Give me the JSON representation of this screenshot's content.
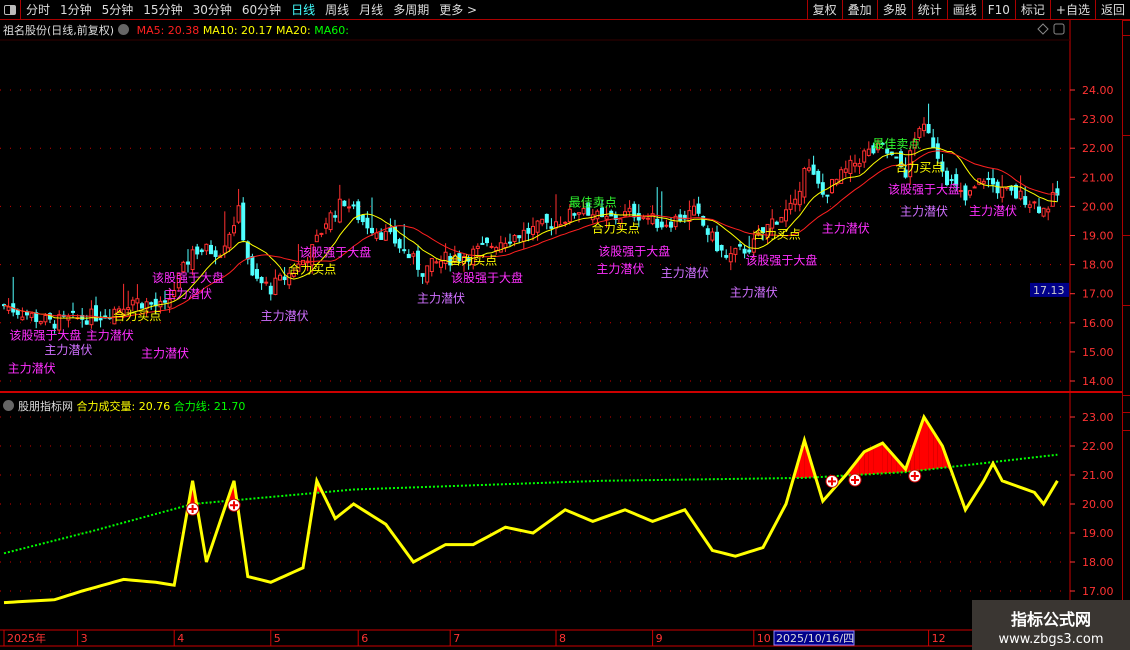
{
  "toolbar": {
    "periods": [
      "分时",
      "1分钟",
      "5分钟",
      "15分钟",
      "30分钟",
      "60分钟",
      "日线",
      "周线",
      "月线",
      "多周期",
      "更多 >"
    ],
    "active": "日线",
    "buttons": [
      "复权",
      "叠加",
      "多股",
      "统计",
      "画线",
      "F10",
      "标记",
      "+自选",
      "返回"
    ]
  },
  "main_panel": {
    "title": "祖名股份(日线,前复权)",
    "ma5": "MA5: 20.38",
    "ma10": "MA10: 20.17",
    "ma20": "MA20:",
    "ma60": "MA60:",
    "current_price_tag": "17.13",
    "colors": {
      "ma5": "#ff2020",
      "ma10": "#ffff00",
      "ma20": "#ffff00",
      "ma60": "#00ff00",
      "up": "#ff3030",
      "down": "#50ffff",
      "axis": "#ff3030"
    }
  },
  "sub_panel": {
    "source": "股朋指标网",
    "vol_label": "合力成交量: 20.76",
    "line_label": "合力线: 21.70"
  },
  "x_axis": {
    "labels": [
      {
        "t": "2025年",
        "d": 0
      },
      {
        "t": "3",
        "d": 16
      },
      {
        "t": "4",
        "d": 37
      },
      {
        "t": "5",
        "d": 58
      },
      {
        "t": "6",
        "d": 77
      },
      {
        "t": "7",
        "d": 97
      },
      {
        "t": "8",
        "d": 120
      },
      {
        "t": "9",
        "d": 141
      },
      {
        "t": "10",
        "d": 163
      }
    ],
    "cursor_label": "2025/10/16/四",
    "extra": [
      {
        "t": "12",
        "d": 201
      }
    ]
  },
  "watermark": {
    "title": "指标公式网",
    "url": "www.zbgs3.com"
  },
  "chart_data": [
    {
      "type": "candlestick",
      "ylim": [
        13.6,
        25
      ],
      "yticks": [
        14,
        15,
        16,
        17,
        18,
        19,
        20,
        21,
        22,
        23,
        24
      ],
      "close_path": [
        [
          0,
          16.6
        ],
        [
          10,
          16.0
        ],
        [
          22,
          16.3
        ],
        [
          28,
          16.8
        ],
        [
          35,
          16.5
        ],
        [
          41,
          18.5
        ],
        [
          47,
          18.5
        ],
        [
          51,
          19.8
        ],
        [
          54,
          17.5
        ],
        [
          58,
          17.2
        ],
        [
          63,
          17.8
        ],
        [
          67,
          18.5
        ],
        [
          70,
          19.5
        ],
        [
          74,
          20.2
        ],
        [
          78,
          19.5
        ],
        [
          85,
          18.8
        ],
        [
          91,
          17.8
        ],
        [
          96,
          18.2
        ],
        [
          102,
          18.4
        ],
        [
          109,
          18.9
        ],
        [
          115,
          19.2
        ],
        [
          122,
          19.6
        ],
        [
          126,
          20.0
        ],
        [
          130,
          19.5
        ],
        [
          137,
          19.8
        ],
        [
          143,
          19.4
        ],
        [
          150,
          19.8
        ],
        [
          157,
          18.2
        ],
        [
          163,
          18.7
        ],
        [
          167,
          19.5
        ],
        [
          172,
          20.0
        ],
        [
          174,
          21.5
        ],
        [
          178,
          20.4
        ],
        [
          183,
          21.2
        ],
        [
          187,
          21.8
        ],
        [
          191,
          22.0
        ],
        [
          196,
          21.2
        ],
        [
          199,
          22.8
        ],
        [
          202,
          22.2
        ],
        [
          205,
          21.0
        ],
        [
          209,
          20.2
        ],
        [
          213,
          21.0
        ],
        [
          217,
          20.5
        ],
        [
          222,
          20.3
        ],
        [
          226,
          19.9
        ],
        [
          229,
          20.4
        ]
      ],
      "annotations": [
        {
          "text": "主力潜伏",
          "d": 6,
          "p": 14.3,
          "color": "#ff30ff"
        },
        {
          "text": "主力潜伏",
          "d": 14,
          "p": 14.45,
          "color": "#d070ff"
        },
        {
          "text": "该股强于大盘",
          "d": 9,
          "p": 14.95,
          "color": "#ff30ff"
        },
        {
          "text": "主力潜伏",
          "d": 23,
          "p": 14.95,
          "color": "#ff30ff"
        },
        {
          "text": "主力潜伏",
          "d": 35,
          "p": 14.8,
          "color": "#ff30ff"
        },
        {
          "text": "合力买点",
          "d": 29,
          "p": 16.1,
          "color": "#ffff00"
        },
        {
          "text": "该股强于大盘",
          "d": 40,
          "p": 17.4,
          "color": "#ff30ff"
        },
        {
          "text": "主力潜伏",
          "d": 40,
          "p": 16.85,
          "color": "#ff30ff"
        },
        {
          "text": "主力潜伏",
          "d": 61,
          "p": 16.1,
          "color": "#d070ff"
        },
        {
          "text": "合力买点",
          "d": 67,
          "p": 17.7,
          "color": "#ffff00"
        },
        {
          "text": "该股强于大盘",
          "d": 72,
          "p": 17.8,
          "color": "#ff30ff"
        },
        {
          "text": "主力潜伏",
          "d": 95,
          "p": 16.7,
          "color": "#d070ff"
        },
        {
          "text": "合力买点",
          "d": 102,
          "p": 18.0,
          "color": "#ffff00"
        },
        {
          "text": "该股强于大盘",
          "d": 105,
          "p": 17.4,
          "color": "#ff30ff"
        },
        {
          "text": "最佳卖点",
          "d": 128,
          "p": 20.0,
          "color": "#30ff30"
        },
        {
          "text": "合力买点",
          "d": 133,
          "p": 19.1,
          "color": "#ffff00"
        },
        {
          "text": "该股强于大盘",
          "d": 137,
          "p": 18.8,
          "color": "#ff30ff"
        },
        {
          "text": "主力潜伏",
          "d": 134,
          "p": 18.2,
          "color": "#ff30ff"
        },
        {
          "text": "主力潜伏",
          "d": 148,
          "p": 18.05,
          "color": "#d070ff"
        },
        {
          "text": "合力买点",
          "d": 168,
          "p": 18.9,
          "color": "#ffff00"
        },
        {
          "text": "该股强于大盘",
          "d": 169,
          "p": 18.0,
          "color": "#ff30ff"
        },
        {
          "text": "主力潜伏",
          "d": 163,
          "p": 16.9,
          "color": "#d070ff"
        },
        {
          "text": "主力潜伏",
          "d": 183,
          "p": 19.1,
          "color": "#ff30ff"
        },
        {
          "text": "最佳卖点",
          "d": 194,
          "p": 22.0,
          "color": "#30ff30"
        },
        {
          "text": "合力买点",
          "d": 199,
          "p": 21.2,
          "color": "#ffff00"
        },
        {
          "text": "该股强于大盘",
          "d": 200,
          "p": 21.4,
          "color": "#ff30ff"
        },
        {
          "text": "主力潜伏",
          "d": 200,
          "p": 20.65,
          "color": "#d070ff"
        },
        {
          "text": "主力潜伏",
          "d": 215,
          "p": 19.7,
          "color": "#ff30ff"
        }
      ]
    },
    {
      "type": "line",
      "ylim": [
        16.5,
        23.5
      ],
      "yticks": [
        17,
        18,
        19,
        20,
        21,
        22,
        23
      ],
      "series": [
        {
          "name": "合力成交量",
          "color": "#ffff00",
          "values": [
            [
              0,
              16.6
            ],
            [
              11,
              16.7
            ],
            [
              17,
              17.0
            ],
            [
              26,
              17.4
            ],
            [
              33,
              17.3
            ],
            [
              37,
              17.2
            ],
            [
              41,
              20.8
            ],
            [
              44,
              18.0
            ],
            [
              50,
              20.8
            ],
            [
              53,
              17.5
            ],
            [
              58,
              17.3
            ],
            [
              65,
              17.8
            ],
            [
              68,
              20.8
            ],
            [
              72,
              19.5
            ],
            [
              76,
              20.0
            ],
            [
              83,
              19.3
            ],
            [
              89,
              18.0
            ],
            [
              96,
              18.6
            ],
            [
              102,
              18.6
            ],
            [
              109,
              19.2
            ],
            [
              115,
              19.0
            ],
            [
              122,
              19.8
            ],
            [
              128,
              19.4
            ],
            [
              135,
              19.8
            ],
            [
              141,
              19.4
            ],
            [
              148,
              19.8
            ],
            [
              154,
              18.4
            ],
            [
              159,
              18.2
            ],
            [
              165,
              18.5
            ],
            [
              170,
              20.0
            ],
            [
              174,
              22.2
            ],
            [
              178,
              20.1
            ],
            [
              183,
              21.0
            ],
            [
              187,
              21.8
            ],
            [
              191,
              22.1
            ],
            [
              196,
              21.2
            ],
            [
              200,
              23.0
            ],
            [
              204,
              22.0
            ],
            [
              209,
              19.8
            ],
            [
              213,
              20.8
            ],
            [
              215,
              21.4
            ],
            [
              217,
              20.8
            ],
            [
              224,
              20.4
            ],
            [
              226,
              20.0
            ],
            [
              229,
              20.8
            ]
          ]
        },
        {
          "name": "合力线",
          "color": "#00ff00",
          "values": [
            [
              0,
              18.3
            ],
            [
              20,
              19.1
            ],
            [
              41,
              20.0
            ],
            [
              76,
              20.5
            ],
            [
              130,
              20.8
            ],
            [
              174,
              20.9
            ],
            [
              196,
              21.1
            ],
            [
              229,
              21.7
            ]
          ]
        }
      ],
      "signals": [
        41,
        50,
        180,
        185,
        198
      ]
    }
  ]
}
